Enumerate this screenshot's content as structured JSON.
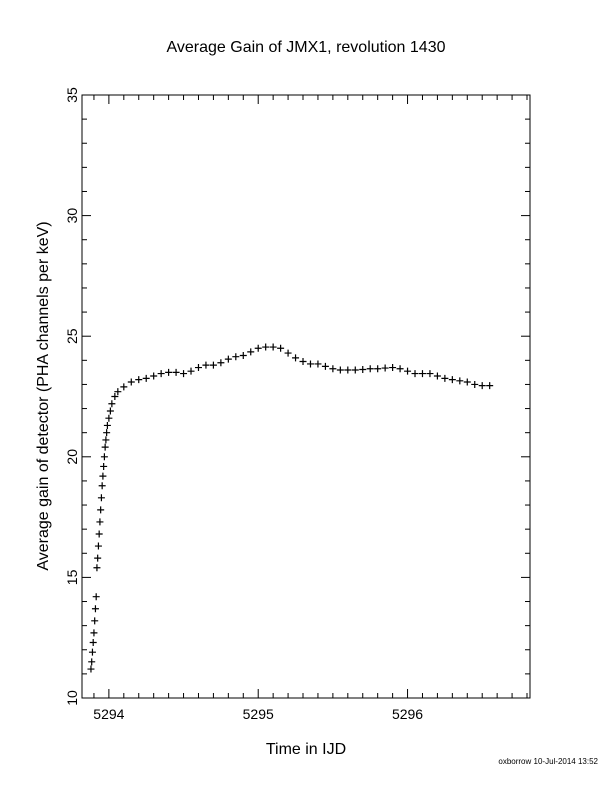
{
  "chart_data": {
    "type": "scatter",
    "title": "Average Gain of JMX1, revolution 1430",
    "xlabel": "Time in IJD",
    "ylabel": "Average gain of detector (PHA channels per keV)",
    "xlim": [
      5293.82,
      5296.82
    ],
    "ylim": [
      10,
      35
    ],
    "xticks": [
      5294,
      5295,
      5296
    ],
    "yticks": [
      10,
      15,
      20,
      25,
      30,
      35
    ],
    "marker": "plus",
    "grid": false,
    "colors": {
      "series": "#000000"
    },
    "series": [
      {
        "points": [
          [
            5293.88,
            11.2
          ],
          [
            5293.885,
            11.5
          ],
          [
            5293.89,
            11.9
          ],
          [
            5293.895,
            12.3
          ],
          [
            5293.9,
            12.7
          ],
          [
            5293.905,
            13.2
          ],
          [
            5293.91,
            13.7
          ],
          [
            5293.915,
            14.2
          ],
          [
            5293.92,
            15.4
          ],
          [
            5293.925,
            15.8
          ],
          [
            5293.93,
            16.3
          ],
          [
            5293.935,
            16.8
          ],
          [
            5293.94,
            17.3
          ],
          [
            5293.945,
            17.8
          ],
          [
            5293.95,
            18.3
          ],
          [
            5293.955,
            18.8
          ],
          [
            5293.96,
            19.2
          ],
          [
            5293.965,
            19.6
          ],
          [
            5293.97,
            20.0
          ],
          [
            5293.975,
            20.4
          ],
          [
            5293.98,
            20.7
          ],
          [
            5293.985,
            21.0
          ],
          [
            5293.99,
            21.3
          ],
          [
            5294.0,
            21.6
          ],
          [
            5294.01,
            21.9
          ],
          [
            5294.02,
            22.2
          ],
          [
            5294.04,
            22.5
          ],
          [
            5294.06,
            22.7
          ],
          [
            5294.1,
            22.9
          ],
          [
            5294.15,
            23.1
          ],
          [
            5294.2,
            23.2
          ],
          [
            5294.25,
            23.25
          ],
          [
            5294.3,
            23.35
          ],
          [
            5294.35,
            23.45
          ],
          [
            5294.4,
            23.5
          ],
          [
            5294.45,
            23.5
          ],
          [
            5294.5,
            23.45
          ],
          [
            5294.55,
            23.55
          ],
          [
            5294.6,
            23.7
          ],
          [
            5294.65,
            23.8
          ],
          [
            5294.7,
            23.8
          ],
          [
            5294.75,
            23.9
          ],
          [
            5294.8,
            24.05
          ],
          [
            5294.85,
            24.15
          ],
          [
            5294.9,
            24.2
          ],
          [
            5294.95,
            24.35
          ],
          [
            5295.0,
            24.5
          ],
          [
            5295.05,
            24.55
          ],
          [
            5295.1,
            24.55
          ],
          [
            5295.15,
            24.5
          ],
          [
            5295.2,
            24.3
          ],
          [
            5295.25,
            24.1
          ],
          [
            5295.3,
            23.95
          ],
          [
            5295.35,
            23.85
          ],
          [
            5295.4,
            23.85
          ],
          [
            5295.45,
            23.75
          ],
          [
            5295.5,
            23.65
          ],
          [
            5295.55,
            23.6
          ],
          [
            5295.6,
            23.6
          ],
          [
            5295.65,
            23.6
          ],
          [
            5295.7,
            23.62
          ],
          [
            5295.75,
            23.65
          ],
          [
            5295.8,
            23.65
          ],
          [
            5295.85,
            23.68
          ],
          [
            5295.9,
            23.7
          ],
          [
            5295.95,
            23.65
          ],
          [
            5296.0,
            23.55
          ],
          [
            5296.05,
            23.45
          ],
          [
            5296.1,
            23.45
          ],
          [
            5296.15,
            23.45
          ],
          [
            5296.2,
            23.35
          ],
          [
            5296.25,
            23.25
          ],
          [
            5296.3,
            23.2
          ],
          [
            5296.35,
            23.15
          ],
          [
            5296.4,
            23.1
          ],
          [
            5296.45,
            23.0
          ],
          [
            5296.5,
            22.95
          ],
          [
            5296.55,
            22.95
          ]
        ]
      }
    ]
  },
  "footer": {
    "text": "oxborrow 10-Jul-2014 13:52"
  }
}
